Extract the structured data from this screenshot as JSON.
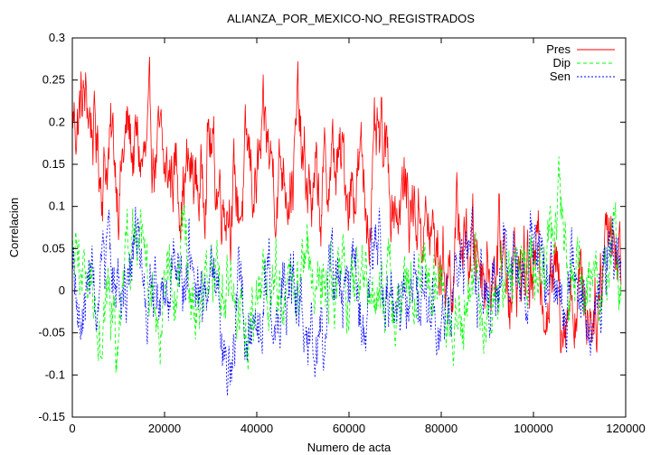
{
  "chart_data": {
    "type": "line",
    "title": "ALIANZA_POR_MEXICO-NO_REGISTRADOS",
    "xlabel": "Numero de acta",
    "ylabel": "Correlacion",
    "xlim": [
      0,
      120000
    ],
    "ylim": [
      -0.15,
      0.3
    ],
    "x_ticks": [
      0,
      20000,
      40000,
      60000,
      80000,
      100000,
      120000
    ],
    "y_ticks": [
      -0.15,
      -0.1,
      -0.05,
      0,
      0.05,
      0.1,
      0.15,
      0.2,
      0.25,
      0.3
    ],
    "grid": false,
    "legend_position": "top-right",
    "points_per_series": 1200,
    "series": [
      {
        "name": "Pres",
        "color": "#ff0000",
        "dash": "solid",
        "anchors_x": [
          0,
          2000,
          4000,
          6000,
          8000,
          10000,
          12000,
          14000,
          16000,
          18000,
          20000,
          22000,
          24000,
          26000,
          28000,
          29500,
          31000,
          34000,
          36000,
          38000,
          40000,
          42000,
          44000,
          46000,
          48000,
          49000,
          50000,
          52000,
          54000,
          56000,
          58000,
          60000,
          62000,
          64000,
          66000,
          68000,
          70000,
          72000,
          74000,
          76000,
          78000,
          80000,
          82000,
          84000,
          86000,
          88000,
          90000,
          92000,
          94000,
          96000,
          98000,
          100000,
          102000,
          104000,
          106000,
          108000,
          110000,
          112000,
          114000,
          116000,
          117000,
          118000,
          119000
        ],
        "anchors_y": [
          0.2,
          0.22,
          0.21,
          0.15,
          0.17,
          0.14,
          0.18,
          0.16,
          0.14,
          0.17,
          0.12,
          0.15,
          0.14,
          0.13,
          0.12,
          0.2,
          0.13,
          0.13,
          0.1,
          0.14,
          0.13,
          0.16,
          0.14,
          0.16,
          0.15,
          0.2,
          0.13,
          0.11,
          0.1,
          0.15,
          0.14,
          0.13,
          0.15,
          0.1,
          0.15,
          0.14,
          0.12,
          0.11,
          0.1,
          0.09,
          0.05,
          0.04,
          0.03,
          0.07,
          0.05,
          0.05,
          0.04,
          0.05,
          0.04,
          0.02,
          0.03,
          0.02,
          0.03,
          0.01,
          0.0,
          0.01,
          0.0,
          -0.01,
          0.0,
          0.1,
          0.09,
          0.05,
          0.03
        ],
        "noise_amplitude": 0.035
      },
      {
        "name": "Dip",
        "color": "#00ff00",
        "dash": "4,3",
        "anchors_x": [
          0,
          2000,
          4000,
          6000,
          8000,
          9500,
          12000,
          13000,
          16000,
          18000,
          20000,
          22000,
          24000,
          26000,
          28000,
          30000,
          32000,
          34000,
          36000,
          38000,
          40000,
          42000,
          44000,
          46000,
          48000,
          50000,
          52000,
          54000,
          56000,
          58000,
          60000,
          62000,
          64000,
          66000,
          68000,
          70000,
          72000,
          74000,
          76000,
          78000,
          80000,
          82000,
          84000,
          86000,
          88000,
          90000,
          92000,
          94000,
          96000,
          98000,
          100000,
          102000,
          104000,
          105500,
          107000,
          110000,
          112000,
          114000,
          116000,
          117000,
          118000,
          119000
        ],
        "anchors_y": [
          0.04,
          0.0,
          0.03,
          -0.02,
          -0.01,
          -0.08,
          0.01,
          0.07,
          -0.01,
          -0.02,
          0.0,
          0.0,
          0.04,
          -0.01,
          0.0,
          0.0,
          -0.02,
          0.01,
          -0.01,
          -0.04,
          -0.01,
          -0.02,
          0.0,
          0.02,
          0.01,
          -0.01,
          0.02,
          0.0,
          0.01,
          0.0,
          0.01,
          -0.01,
          0.01,
          0.02,
          0.0,
          -0.02,
          0.01,
          -0.01,
          0.0,
          0.0,
          -0.02,
          -0.03,
          0.01,
          0.03,
          0.02,
          -0.03,
          -0.01,
          0.02,
          0.04,
          0.03,
          0.04,
          0.01,
          0.03,
          0.12,
          0.02,
          0.0,
          -0.01,
          0.0,
          0.02,
          0.06,
          0.03,
          -0.03
        ],
        "noise_amplitude": 0.03
      },
      {
        "name": "Sen",
        "color": "#0000ff",
        "dash": "2,2",
        "anchors_x": [
          0,
          2000,
          4000,
          6000,
          8000,
          10000,
          12000,
          13000,
          16000,
          18000,
          20000,
          22000,
          24000,
          25000,
          28000,
          30000,
          32000,
          33500,
          36000,
          38000,
          40000,
          42000,
          44000,
          46000,
          48000,
          50000,
          52000,
          53000,
          56000,
          58000,
          60000,
          62000,
          64000,
          66000,
          68000,
          70000,
          72000,
          74000,
          76000,
          78000,
          80000,
          82000,
          84000,
          86000,
          88000,
          90000,
          92000,
          94000,
          96000,
          98000,
          100000,
          102000,
          104000,
          106000,
          108000,
          110000,
          112000,
          114000,
          116000,
          118000,
          119000
        ],
        "anchors_y": [
          0.04,
          -0.05,
          0.03,
          -0.02,
          0.02,
          0.0,
          0.02,
          0.07,
          -0.01,
          -0.02,
          -0.04,
          0.0,
          -0.02,
          0.05,
          -0.02,
          0.02,
          0.0,
          -0.1,
          -0.01,
          -0.04,
          -0.03,
          0.0,
          -0.02,
          0.01,
          0.0,
          -0.02,
          -0.04,
          -0.07,
          0.01,
          0.0,
          0.02,
          -0.01,
          -0.02,
          0.04,
          0.02,
          -0.03,
          0.0,
          0.02,
          0.0,
          -0.01,
          -0.02,
          -0.03,
          0.01,
          0.02,
          -0.01,
          -0.05,
          0.0,
          0.03,
          0.05,
          0.01,
          0.06,
          0.0,
          0.04,
          -0.01,
          0.02,
          0.0,
          -0.02,
          0.01,
          0.03,
          0.0,
          0.02
        ],
        "noise_amplitude": 0.03
      }
    ]
  }
}
